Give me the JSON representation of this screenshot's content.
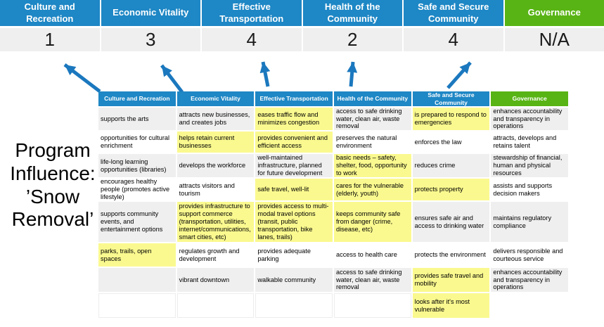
{
  "title": "Program Influence: ’Snow Removal’",
  "colors": {
    "header_blue": "#1E87C5",
    "header_green": "#58B414",
    "row_gray": "#EFEFEF",
    "highlight_yellow": "#FAF98F",
    "arrow_blue": "#1B78BE"
  },
  "summary": {
    "columns": [
      {
        "label": "Culture and Recreation",
        "score": "1",
        "theme": "blue"
      },
      {
        "label": "Economic Vitality",
        "score": "3",
        "theme": "blue"
      },
      {
        "label": "Effective Transportation",
        "score": "4",
        "theme": "blue"
      },
      {
        "label": "Health of the Community",
        "score": "2",
        "theme": "blue"
      },
      {
        "label": "Safe and Secure Community",
        "score": "4",
        "theme": "blue"
      },
      {
        "label": "Governance",
        "score": "N/A",
        "theme": "green"
      }
    ]
  },
  "matrix": {
    "headers": [
      {
        "label": "Culture and Recreation",
        "theme": "blue"
      },
      {
        "label": "Economic Vitality",
        "theme": "blue"
      },
      {
        "label": "Effective Transportation",
        "theme": "blue"
      },
      {
        "label": "Health of the Community",
        "theme": "blue"
      },
      {
        "label": "Safe and Secure Community",
        "theme": "blue"
      },
      {
        "label": "Governance",
        "theme": "green"
      }
    ],
    "columns": [
      {
        "name": "Culture and Recreation",
        "cells": [
          {
            "text": "supports the arts",
            "highlighted": false
          },
          {
            "text": "opportunities for cultural enrichment",
            "highlighted": false
          },
          {
            "text": "life-long learning opportunities (libraries)",
            "highlighted": false
          },
          {
            "text": "encourages healthy people (promotes active lifestyle)",
            "highlighted": false
          },
          {
            "text": "supports community events, and entertainment options",
            "highlighted": false
          },
          {
            "text": "parks, trails, open spaces",
            "highlighted": true
          },
          {
            "text": "",
            "highlighted": false
          },
          {
            "text": "",
            "highlighted": false
          }
        ]
      },
      {
        "name": "Economic Vitality",
        "cells": [
          {
            "text": "attracts new businesses, and creates jobs",
            "highlighted": false
          },
          {
            "text": "helps retain current businesses",
            "highlighted": true
          },
          {
            "text": "develops the workforce",
            "highlighted": false
          },
          {
            "text": "attracts visitors and tourism",
            "highlighted": false
          },
          {
            "text": "provides infrastructure to support commerce (transportation, utilities, internet/communications, smart cities, etc)",
            "highlighted": true
          },
          {
            "text": "regulates growth and development",
            "highlighted": false
          },
          {
            "text": "vibrant downtown",
            "highlighted": false
          },
          {
            "text": "",
            "highlighted": false
          }
        ]
      },
      {
        "name": "Effective Transportation",
        "cells": [
          {
            "text": "eases traffic flow and minimizes congestion",
            "highlighted": true
          },
          {
            "text": "provides convenient and efficient access",
            "highlighted": true
          },
          {
            "text": "well-maintained infrastructure, planned for future development",
            "highlighted": false
          },
          {
            "text": "safe travel, well-lit",
            "highlighted": true
          },
          {
            "text": "provides access to multi-modal travel options (transit, public transportation, bike lanes, trails)",
            "highlighted": true
          },
          {
            "text": "provides adequate parking",
            "highlighted": false
          },
          {
            "text": "walkable community",
            "highlighted": false
          },
          {
            "text": "",
            "highlighted": false
          }
        ]
      },
      {
        "name": "Health of the Community",
        "cells": [
          {
            "text": "access to safe drinking water, clean air, waste removal",
            "highlighted": false
          },
          {
            "text": "preserves the natural environment",
            "highlighted": false
          },
          {
            "text": "basic needs – safety, shelter, food, opportunity to work",
            "highlighted": true
          },
          {
            "text": "cares for the vulnerable (elderly, youth)",
            "highlighted": true
          },
          {
            "text": "keeps community safe from danger (crime, disease, etc)",
            "highlighted": true
          },
          {
            "text": "access to health care",
            "highlighted": false
          },
          {
            "text": "access to safe drinking water, clean air, waste removal",
            "highlighted": false
          },
          {
            "text": "",
            "highlighted": false
          }
        ]
      },
      {
        "name": "Safe and Secure Community",
        "cells": [
          {
            "text": "is prepared to respond to emergencies",
            "highlighted": true
          },
          {
            "text": "enforces the law",
            "highlighted": false
          },
          {
            "text": "reduces crime",
            "highlighted": false
          },
          {
            "text": "protects property",
            "highlighted": true
          },
          {
            "text": "ensures safe air and access to drinking water",
            "highlighted": false
          },
          {
            "text": "protects the environment",
            "highlighted": false
          },
          {
            "text": "provides safe travel and mobility",
            "highlighted": true
          },
          {
            "text": "looks after it's most vulnerable",
            "highlighted": true
          }
        ]
      },
      {
        "name": "Governance",
        "cells": [
          {
            "text": "enhances accountability and transparency in operations",
            "highlighted": false
          },
          {
            "text": "attracts, develops and retains talent",
            "highlighted": false
          },
          {
            "text": "stewardship of financial, human and physical resources",
            "highlighted": false
          },
          {
            "text": "assists and supports decision makers",
            "highlighted": false
          },
          {
            "text": "maintains regulatory compliance",
            "highlighted": false
          },
          {
            "text": "delivers responsible and courteous service",
            "highlighted": false
          },
          {
            "text": "enhances accountability and transparency in operations",
            "highlighted": false
          },
          {
            "text": "",
            "highlighted": false
          }
        ]
      }
    ]
  }
}
